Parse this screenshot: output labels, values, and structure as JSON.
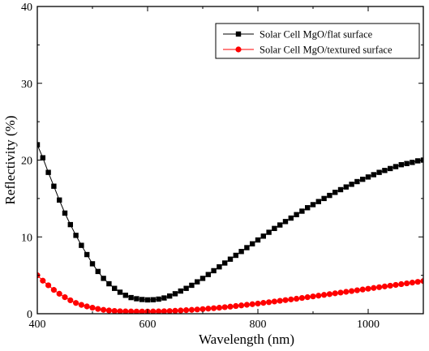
{
  "chart_data": {
    "type": "line",
    "title": "",
    "xlabel": "Wavelength (nm)",
    "ylabel": "Reflectivity (%)",
    "xlim": [
      400,
      1100
    ],
    "ylim": [
      0,
      40
    ],
    "xticks": [
      400,
      600,
      800,
      1000
    ],
    "yticks": [
      0,
      10,
      20,
      30,
      40
    ],
    "xtick_labels": [
      "400",
      "600",
      "800",
      "1000"
    ],
    "ytick_labels": [
      "0",
      "10",
      "20",
      "30",
      "40"
    ],
    "grid": false,
    "legend_position": "top-right",
    "series": [
      {
        "name": "Solar Cell MgO/flat surface",
        "color": "#000000",
        "marker": "square",
        "points": [
          [
            400,
            22.0
          ],
          [
            410,
            20.3
          ],
          [
            420,
            18.4
          ],
          [
            430,
            16.6
          ],
          [
            440,
            14.8
          ],
          [
            450,
            13.1
          ],
          [
            460,
            11.6
          ],
          [
            470,
            10.2
          ],
          [
            480,
            8.9
          ],
          [
            490,
            7.7
          ],
          [
            500,
            6.5
          ],
          [
            510,
            5.5
          ],
          [
            520,
            4.6
          ],
          [
            530,
            3.9
          ],
          [
            540,
            3.3
          ],
          [
            550,
            2.8
          ],
          [
            560,
            2.4
          ],
          [
            570,
            2.1
          ],
          [
            580,
            1.95
          ],
          [
            590,
            1.85
          ],
          [
            600,
            1.8
          ],
          [
            610,
            1.82
          ],
          [
            620,
            1.9
          ],
          [
            630,
            2.05
          ],
          [
            640,
            2.3
          ],
          [
            650,
            2.6
          ],
          [
            660,
            2.95
          ],
          [
            670,
            3.3
          ],
          [
            680,
            3.7
          ],
          [
            690,
            4.15
          ],
          [
            700,
            4.6
          ],
          [
            710,
            5.1
          ],
          [
            720,
            5.6
          ],
          [
            730,
            6.1
          ],
          [
            740,
            6.6
          ],
          [
            750,
            7.1
          ],
          [
            760,
            7.6
          ],
          [
            770,
            8.1
          ],
          [
            780,
            8.6
          ],
          [
            790,
            9.1
          ],
          [
            800,
            9.6
          ],
          [
            810,
            10.1
          ],
          [
            820,
            10.6
          ],
          [
            830,
            11.1
          ],
          [
            840,
            11.55
          ],
          [
            850,
            12.0
          ],
          [
            860,
            12.45
          ],
          [
            870,
            12.9
          ],
          [
            880,
            13.35
          ],
          [
            890,
            13.8
          ],
          [
            900,
            14.2
          ],
          [
            910,
            14.6
          ],
          [
            920,
            15.0
          ],
          [
            930,
            15.4
          ],
          [
            940,
            15.8
          ],
          [
            950,
            16.15
          ],
          [
            960,
            16.5
          ],
          [
            970,
            16.85
          ],
          [
            980,
            17.2
          ],
          [
            990,
            17.5
          ],
          [
            1000,
            17.8
          ],
          [
            1010,
            18.1
          ],
          [
            1020,
            18.4
          ],
          [
            1030,
            18.65
          ],
          [
            1040,
            18.9
          ],
          [
            1050,
            19.15
          ],
          [
            1060,
            19.4
          ],
          [
            1070,
            19.55
          ],
          [
            1080,
            19.7
          ],
          [
            1090,
            19.9
          ],
          [
            1100,
            20.0
          ]
        ]
      },
      {
        "name": "Solar Cell MgO/textured surface",
        "color": "#ff0000",
        "marker": "circle",
        "points": [
          [
            400,
            5.0
          ],
          [
            410,
            4.3
          ],
          [
            420,
            3.7
          ],
          [
            430,
            3.1
          ],
          [
            440,
            2.6
          ],
          [
            450,
            2.15
          ],
          [
            460,
            1.75
          ],
          [
            470,
            1.4
          ],
          [
            480,
            1.15
          ],
          [
            490,
            0.95
          ],
          [
            500,
            0.78
          ],
          [
            510,
            0.62
          ],
          [
            520,
            0.5
          ],
          [
            530,
            0.42
          ],
          [
            540,
            0.36
          ],
          [
            550,
            0.32
          ],
          [
            560,
            0.3
          ],
          [
            570,
            0.29
          ],
          [
            580,
            0.28
          ],
          [
            590,
            0.28
          ],
          [
            600,
            0.28
          ],
          [
            610,
            0.29
          ],
          [
            620,
            0.3
          ],
          [
            630,
            0.32
          ],
          [
            640,
            0.35
          ],
          [
            650,
            0.38
          ],
          [
            660,
            0.42
          ],
          [
            670,
            0.46
          ],
          [
            680,
            0.5
          ],
          [
            690,
            0.55
          ],
          [
            700,
            0.6
          ],
          [
            710,
            0.66
          ],
          [
            720,
            0.72
          ],
          [
            730,
            0.78
          ],
          [
            740,
            0.85
          ],
          [
            750,
            0.92
          ],
          [
            760,
            1.0
          ],
          [
            770,
            1.08
          ],
          [
            780,
            1.16
          ],
          [
            790,
            1.24
          ],
          [
            800,
            1.32
          ],
          [
            810,
            1.41
          ],
          [
            820,
            1.5
          ],
          [
            830,
            1.59
          ],
          [
            840,
            1.68
          ],
          [
            850,
            1.77
          ],
          [
            860,
            1.86
          ],
          [
            870,
            1.95
          ],
          [
            880,
            2.05
          ],
          [
            890,
            2.15
          ],
          [
            900,
            2.25
          ],
          [
            910,
            2.35
          ],
          [
            920,
            2.45
          ],
          [
            930,
            2.55
          ],
          [
            940,
            2.65
          ],
          [
            950,
            2.75
          ],
          [
            960,
            2.85
          ],
          [
            970,
            2.95
          ],
          [
            980,
            3.05
          ],
          [
            990,
            3.15
          ],
          [
            1000,
            3.25
          ],
          [
            1010,
            3.35
          ],
          [
            1020,
            3.45
          ],
          [
            1030,
            3.55
          ],
          [
            1040,
            3.65
          ],
          [
            1050,
            3.75
          ],
          [
            1060,
            3.85
          ],
          [
            1070,
            3.95
          ],
          [
            1080,
            4.05
          ],
          [
            1090,
            4.15
          ],
          [
            1100,
            4.25
          ]
        ]
      }
    ]
  }
}
